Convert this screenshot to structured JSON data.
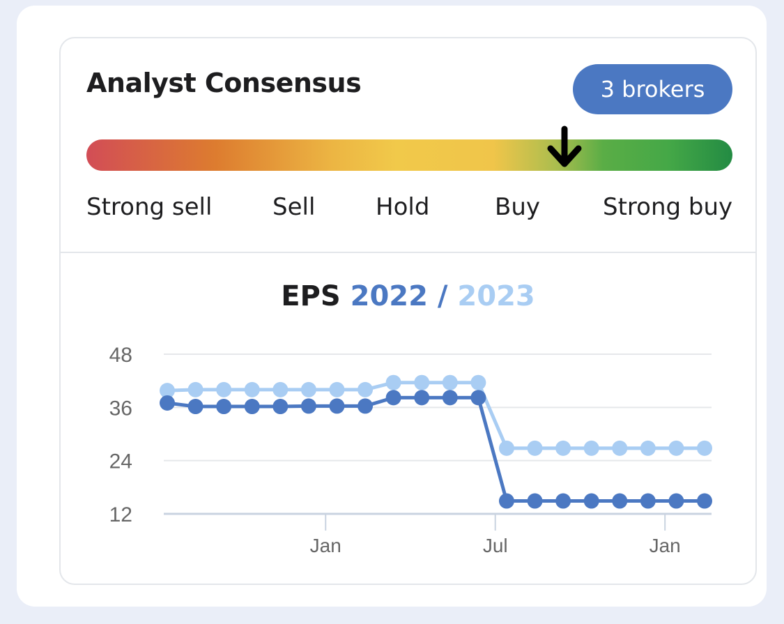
{
  "card": {
    "title": "Analyst Consensus",
    "brokers_badge": "3  brokers"
  },
  "consensus": {
    "scale_labels": [
      "Strong sell",
      "Sell",
      "Hold",
      "Buy",
      "Strong buy"
    ],
    "indicator_value": 0.74,
    "colors": {
      "strong_sell": "#d24d56",
      "hold": "#f1c94a",
      "strong_buy": "#238b43"
    }
  },
  "eps": {
    "title_prefix": "EPS",
    "year_1": "2022",
    "separator": " / ",
    "year_2": "2023"
  },
  "chart_data": {
    "type": "line",
    "yticks": [
      12,
      24,
      36,
      48
    ],
    "ylim": [
      12,
      48
    ],
    "xticks": [
      {
        "label": "Jan",
        "index": 5.6
      },
      {
        "label": "Jul",
        "index": 11.6
      },
      {
        "label": "Jan",
        "index": 17.6
      }
    ],
    "grid": true,
    "series": [
      {
        "color": "#4b78c2",
        "values": [
          37,
          36.2,
          36.2,
          36.2,
          36.2,
          36.3,
          36.3,
          36.3,
          38.2,
          38.2,
          38.2,
          38.2,
          14.9,
          14.9,
          14.9,
          14.9,
          14.9,
          14.9,
          14.9,
          14.9
        ]
      },
      {
        "color": "#a9cdf3",
        "values": [
          39.8,
          40,
          40,
          40,
          40,
          40,
          40,
          40,
          41.6,
          41.6,
          41.6,
          41.6,
          26.8,
          26.8,
          26.8,
          26.8,
          26.8,
          26.8,
          26.8,
          26.8
        ]
      }
    ]
  }
}
